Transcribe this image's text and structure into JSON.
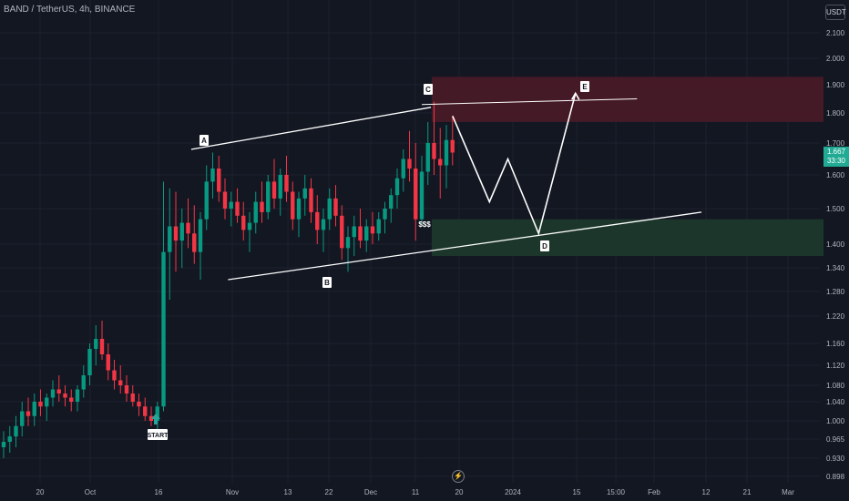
{
  "header": {
    "symbol": "BAND / TetherUS, 4h, BINANCE",
    "currency_label": "USDT"
  },
  "price_tag": {
    "price": "1.667",
    "countdown": "33:30"
  },
  "colors": {
    "up": "#089981",
    "down": "#f23645",
    "resistance_zone": "#4a1b27",
    "support_zone": "#1e3a2c",
    "label_bg": "#ffffff",
    "start_arrow": "#26a69a"
  },
  "chart_data": {
    "type": "candlestick",
    "y_axis": {
      "ticks": [
        "2.100",
        "2.000",
        "1.900",
        "1.800",
        "1.700",
        "1.600",
        "1.500",
        "1.400",
        "1.340",
        "1.280",
        "1.220",
        "1.160",
        "1.120",
        "1.080",
        "1.040",
        "1.000",
        "0.965",
        "0.930",
        "0.898"
      ]
    },
    "x_axis": {
      "ticks": [
        "20",
        "Oct",
        "16",
        "Nov",
        "13",
        "22",
        "Dec",
        "11",
        "20",
        "2024",
        "15",
        "15:00",
        "Feb",
        "12",
        "21",
        "Mar"
      ]
    },
    "zones": [
      {
        "kind": "resistance",
        "from": 1.77,
        "to": 1.93
      },
      {
        "kind": "support",
        "from": 1.37,
        "to": 1.47
      }
    ],
    "annotations": [
      "A",
      "B",
      "C",
      "D",
      "E",
      "$$$",
      "START"
    ],
    "series": [
      {
        "values": [
          [
            0.95,
            0.98,
            0.93,
            0.96
          ],
          [
            0.96,
            0.99,
            0.94,
            0.97
          ],
          [
            0.97,
            1.01,
            0.95,
            0.99
          ],
          [
            0.99,
            1.04,
            0.97,
            1.02
          ],
          [
            1.02,
            1.05,
            0.99,
            1.01
          ],
          [
            1.01,
            1.06,
            0.99,
            1.04
          ],
          [
            1.04,
            1.07,
            1.01,
            1.03
          ],
          [
            1.03,
            1.06,
            1.0,
            1.05
          ],
          [
            1.05,
            1.09,
            1.03,
            1.07
          ],
          [
            1.07,
            1.1,
            1.04,
            1.06
          ],
          [
            1.06,
            1.08,
            1.03,
            1.05
          ],
          [
            1.05,
            1.07,
            1.02,
            1.04
          ],
          [
            1.04,
            1.08,
            1.02,
            1.07
          ],
          [
            1.07,
            1.12,
            1.05,
            1.1
          ],
          [
            1.1,
            1.16,
            1.08,
            1.15
          ],
          [
            1.15,
            1.2,
            1.12,
            1.17
          ],
          [
            1.17,
            1.21,
            1.13,
            1.14
          ],
          [
            1.14,
            1.16,
            1.09,
            1.11
          ],
          [
            1.11,
            1.13,
            1.07,
            1.09
          ],
          [
            1.09,
            1.12,
            1.06,
            1.08
          ],
          [
            1.08,
            1.1,
            1.04,
            1.06
          ],
          [
            1.06,
            1.08,
            1.03,
            1.04
          ],
          [
            1.04,
            1.06,
            1.01,
            1.03
          ],
          [
            1.03,
            1.05,
            1.0,
            1.01
          ],
          [
            1.01,
            1.03,
            0.99,
            1.0
          ],
          [
            1.0,
            1.04,
            0.98,
            1.03
          ],
          [
            1.03,
            1.58,
            1.02,
            1.38
          ],
          [
            1.38,
            1.56,
            1.26,
            1.45
          ],
          [
            1.45,
            1.55,
            1.33,
            1.41
          ],
          [
            1.41,
            1.5,
            1.34,
            1.46
          ],
          [
            1.46,
            1.53,
            1.39,
            1.43
          ],
          [
            1.43,
            1.51,
            1.35,
            1.38
          ],
          [
            1.38,
            1.49,
            1.31,
            1.47
          ],
          [
            1.47,
            1.63,
            1.44,
            1.58
          ],
          [
            1.58,
            1.67,
            1.53,
            1.62
          ],
          [
            1.62,
            1.66,
            1.52,
            1.55
          ],
          [
            1.55,
            1.59,
            1.47,
            1.5
          ],
          [
            1.5,
            1.55,
            1.45,
            1.52
          ],
          [
            1.52,
            1.56,
            1.46,
            1.48
          ],
          [
            1.48,
            1.52,
            1.41,
            1.44
          ],
          [
            1.44,
            1.49,
            1.38,
            1.46
          ],
          [
            1.46,
            1.55,
            1.43,
            1.52
          ],
          [
            1.52,
            1.58,
            1.46,
            1.49
          ],
          [
            1.49,
            1.6,
            1.47,
            1.58
          ],
          [
            1.58,
            1.65,
            1.5,
            1.53
          ],
          [
            1.53,
            1.62,
            1.48,
            1.6
          ],
          [
            1.6,
            1.66,
            1.52,
            1.55
          ],
          [
            1.55,
            1.58,
            1.44,
            1.47
          ],
          [
            1.47,
            1.55,
            1.42,
            1.53
          ],
          [
            1.53,
            1.6,
            1.48,
            1.56
          ],
          [
            1.56,
            1.59,
            1.46,
            1.49
          ],
          [
            1.49,
            1.54,
            1.4,
            1.44
          ],
          [
            1.44,
            1.5,
            1.38,
            1.47
          ],
          [
            1.47,
            1.56,
            1.44,
            1.53
          ],
          [
            1.53,
            1.57,
            1.45,
            1.48
          ],
          [
            1.48,
            1.51,
            1.36,
            1.39
          ],
          [
            1.39,
            1.45,
            1.33,
            1.42
          ],
          [
            1.42,
            1.48,
            1.37,
            1.45
          ],
          [
            1.45,
            1.5,
            1.39,
            1.41
          ],
          [
            1.41,
            1.47,
            1.38,
            1.45
          ],
          [
            1.45,
            1.49,
            1.4,
            1.43
          ],
          [
            1.43,
            1.49,
            1.41,
            1.47
          ],
          [
            1.47,
            1.52,
            1.43,
            1.5
          ],
          [
            1.5,
            1.56,
            1.46,
            1.54
          ],
          [
            1.54,
            1.62,
            1.5,
            1.59
          ],
          [
            1.59,
            1.68,
            1.55,
            1.65
          ],
          [
            1.65,
            1.74,
            1.58,
            1.62
          ],
          [
            1.62,
            1.7,
            1.41,
            1.47
          ],
          [
            1.47,
            1.66,
            1.45,
            1.61
          ],
          [
            1.61,
            1.77,
            1.57,
            1.7
          ],
          [
            1.7,
            1.84,
            1.6,
            1.65
          ],
          [
            1.65,
            1.75,
            1.53,
            1.63
          ],
          [
            1.63,
            1.76,
            1.56,
            1.71
          ],
          [
            1.71,
            1.79,
            1.63,
            1.67
          ]
        ]
      }
    ],
    "overlays": {
      "upper_trendline": [
        [
          28,
          1.68
        ],
        [
          68,
          1.83
        ],
        [
          88,
          1.85
        ]
      ],
      "lower_trendline": [
        [
          36,
          1.31
        ],
        [
          87,
          1.48
        ]
      ],
      "projection": [
        [
          73,
          1.79
        ],
        [
          79,
          1.52
        ],
        [
          82,
          1.65
        ],
        [
          87,
          1.43
        ],
        [
          93,
          1.87
        ]
      ],
      "channel_top_flat": [
        [
          68,
          1.83
        ],
        [
          103,
          1.85
        ]
      ]
    }
  }
}
